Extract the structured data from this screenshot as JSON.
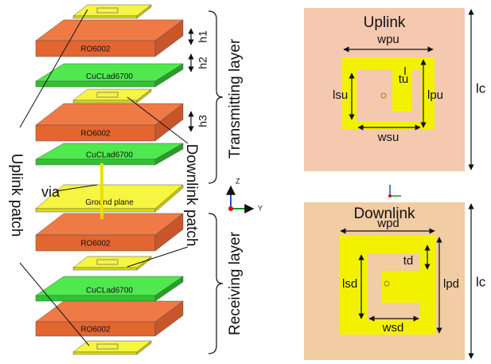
{
  "stack": {
    "layers": [
      "RO6002",
      "CuCLad6700",
      "RO6002",
      "CuCLad6700",
      "Ground plane",
      "RO6002",
      "CuCLad6700",
      "RO6002"
    ],
    "heights": [
      "h1",
      "h2",
      "h3"
    ],
    "via": "via",
    "transmitting_layer": "Transmitting layer",
    "receiving_layer": "Receiving layer",
    "downlink_patch": "Downlink patch",
    "uplink_patch": "Uplink patch",
    "axes": [
      "Z",
      "Y"
    ]
  },
  "uplink": {
    "title": "Uplink",
    "patch_width": "wpu",
    "slot_thickness": "tu",
    "slot_length": "lsu",
    "patch_length": "lpu",
    "slot_width": "wsu",
    "cell_size": "lc"
  },
  "downlink": {
    "title": "Downlink",
    "patch_width": "wpd",
    "slot_thickness": "td",
    "slot_length": "lsd",
    "patch_length": "lpd",
    "slot_width": "wsd",
    "cell_size": "lc"
  }
}
